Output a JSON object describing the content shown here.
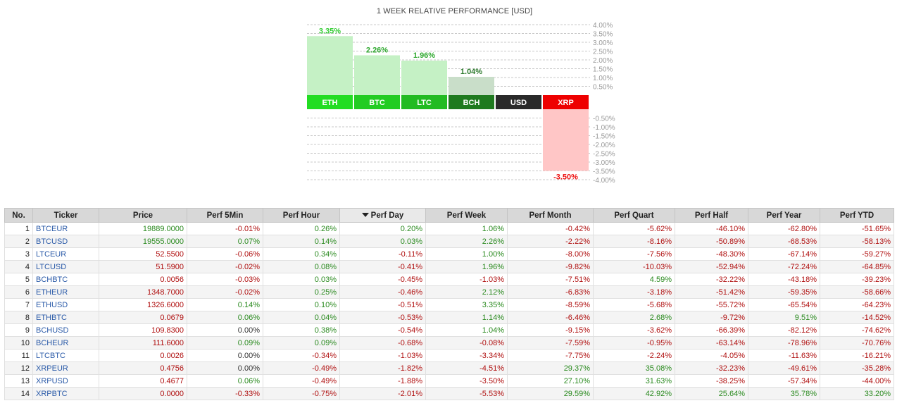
{
  "chart_data": {
    "type": "bar",
    "title": "1 WEEK RELATIVE PERFORMANCE  [USD]",
    "categories": [
      "ETH",
      "BTC",
      "LTC",
      "BCH",
      "USD",
      "XRP"
    ],
    "values": [
      3.35,
      2.26,
      1.96,
      1.04,
      0.0,
      -3.5
    ],
    "value_labels": [
      "3.35%",
      "2.26%",
      "1.96%",
      "1.04%",
      "",
      "-3.50%"
    ],
    "label_colors": [
      "#33cc33",
      "#33aa33",
      "#33aa33",
      "#2d7a2d",
      "#333333",
      "#ee1111"
    ],
    "bar_fills": [
      "#c5f1c5",
      "#c5f1c5",
      "#c5f1c5",
      "#c9dec9",
      "#ffffff",
      "#ffc6c6"
    ],
    "pos_ticks": [
      "4.00%",
      "3.50%",
      "3.00%",
      "2.50%",
      "2.00%",
      "1.50%",
      "1.00%",
      "0.50%"
    ],
    "neg_ticks": [
      "-0.50%",
      "-1.00%",
      "-1.50%",
      "-2.00%",
      "-2.50%",
      "-3.00%",
      "-3.50%",
      "-4.00%"
    ],
    "ylim": [
      -4,
      4
    ],
    "grid": true
  },
  "table": {
    "headers": [
      "No.",
      "Ticker",
      "Price",
      "Perf 5Min",
      "Perf Hour",
      "Perf Day",
      "Perf Week",
      "Perf Month",
      "Perf Quart",
      "Perf Half",
      "Perf Year",
      "Perf YTD"
    ],
    "sorted_column": "Perf Day",
    "rows": [
      [
        "1",
        "BTCEUR",
        "19889.0000",
        "-0.01%",
        "0.26%",
        "0.20%",
        "1.06%",
        "-0.42%",
        "-5.62%",
        "-46.10%",
        "-62.80%",
        "-51.65%"
      ],
      [
        "2",
        "BTCUSD",
        "19555.0000",
        "0.07%",
        "0.14%",
        "0.03%",
        "2.26%",
        "-2.22%",
        "-8.16%",
        "-50.89%",
        "-68.53%",
        "-58.13%"
      ],
      [
        "3",
        "LTCEUR",
        "52.5500",
        "-0.06%",
        "0.34%",
        "-0.11%",
        "1.00%",
        "-8.00%",
        "-7.56%",
        "-48.30%",
        "-67.14%",
        "-59.27%"
      ],
      [
        "4",
        "LTCUSD",
        "51.5900",
        "-0.02%",
        "0.08%",
        "-0.41%",
        "1.96%",
        "-9.82%",
        "-10.03%",
        "-52.94%",
        "-72.24%",
        "-64.85%"
      ],
      [
        "5",
        "BCHBTC",
        "0.0056",
        "-0.03%",
        "0.03%",
        "-0.45%",
        "-1.03%",
        "-7.51%",
        "4.59%",
        "-32.22%",
        "-43.18%",
        "-39.23%"
      ],
      [
        "6",
        "ETHEUR",
        "1348.7000",
        "-0.02%",
        "0.25%",
        "-0.46%",
        "2.12%",
        "-6.83%",
        "-3.18%",
        "-51.42%",
        "-59.35%",
        "-58.66%"
      ],
      [
        "7",
        "ETHUSD",
        "1326.6000",
        "0.14%",
        "0.10%",
        "-0.51%",
        "3.35%",
        "-8.59%",
        "-5.68%",
        "-55.72%",
        "-65.54%",
        "-64.23%"
      ],
      [
        "8",
        "ETHBTC",
        "0.0679",
        "0.06%",
        "0.04%",
        "-0.53%",
        "1.14%",
        "-6.46%",
        "2.68%",
        "-9.72%",
        "9.51%",
        "-14.52%"
      ],
      [
        "9",
        "BCHUSD",
        "109.8300",
        "0.00%",
        "0.38%",
        "-0.54%",
        "1.04%",
        "-9.15%",
        "-3.62%",
        "-66.39%",
        "-82.12%",
        "-74.62%"
      ],
      [
        "10",
        "BCHEUR",
        "111.6000",
        "0.09%",
        "0.09%",
        "-0.68%",
        "-0.08%",
        "-7.59%",
        "-0.95%",
        "-63.14%",
        "-78.96%",
        "-70.76%"
      ],
      [
        "11",
        "LTCBTC",
        "0.0026",
        "0.00%",
        "-0.34%",
        "-1.03%",
        "-3.34%",
        "-7.75%",
        "-2.24%",
        "-4.05%",
        "-11.63%",
        "-16.21%"
      ],
      [
        "12",
        "XRPEUR",
        "0.4756",
        "0.00%",
        "-0.49%",
        "-1.82%",
        "-4.51%",
        "29.37%",
        "35.08%",
        "-32.23%",
        "-49.61%",
        "-35.28%"
      ],
      [
        "13",
        "XRPUSD",
        "0.4677",
        "0.06%",
        "-0.49%",
        "-1.88%",
        "-3.50%",
        "27.10%",
        "31.63%",
        "-38.25%",
        "-57.34%",
        "-44.00%"
      ],
      [
        "14",
        "XRPBTC",
        "0.0000",
        "-0.33%",
        "-0.75%",
        "-2.01%",
        "-5.53%",
        "29.59%",
        "42.92%",
        "25.64%",
        "35.78%",
        "33.20%"
      ]
    ]
  },
  "colors": {
    "positive": "#2a8a1f",
    "negative": "#b01010",
    "ticker_link": "#2a5aa8",
    "header_bg": "#d8d8d8"
  }
}
